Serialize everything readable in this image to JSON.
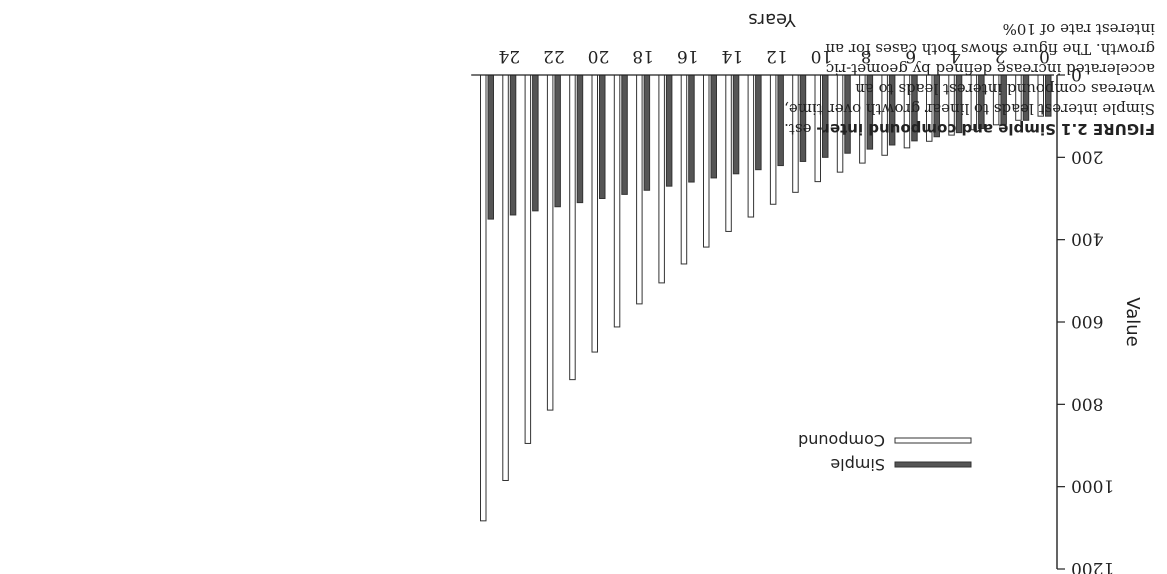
{
  "caption": {
    "label": "FIGURE 2.1  Simple and compound inter-",
    "text": "est. Simple interest leads to linear growth over time, whereas compound interest leads to an accelerated increase defined by geomet-ric growth. The figure shows both cases for an interest rate of 10%"
  },
  "chart_data": {
    "type": "bar",
    "xlabel": "Years",
    "ylabel": "Value",
    "ylim": [
      0,
      1200
    ],
    "yticks": [
      0,
      200,
      400,
      600,
      800,
      1000,
      1200
    ],
    "xticks": [
      0,
      2,
      4,
      6,
      8,
      10,
      12,
      14,
      16,
      18,
      20,
      22,
      24
    ],
    "categories": [
      0,
      1,
      2,
      3,
      4,
      5,
      6,
      7,
      8,
      9,
      10,
      11,
      12,
      13,
      14,
      15,
      16,
      17,
      18,
      19,
      20,
      21,
      22,
      23,
      24,
      25
    ],
    "series": [
      {
        "name": "Simple",
        "color": "#555555",
        "values": [
          100,
          110,
          120,
          130,
          140,
          150,
          160,
          170,
          180,
          190,
          200,
          210,
          220,
          230,
          240,
          250,
          260,
          270,
          280,
          290,
          300,
          310,
          320,
          330,
          340,
          350
        ]
      },
      {
        "name": "Compound",
        "color": "#ffffff",
        "values": [
          100,
          110,
          121,
          133,
          146,
          161,
          177,
          195,
          214,
          236,
          259,
          285,
          314,
          345,
          380,
          418,
          459,
          505,
          556,
          612,
          673,
          740,
          814,
          895,
          985,
          1083
        ]
      }
    ],
    "legend_position": "inside-top-left",
    "grid": false
  }
}
